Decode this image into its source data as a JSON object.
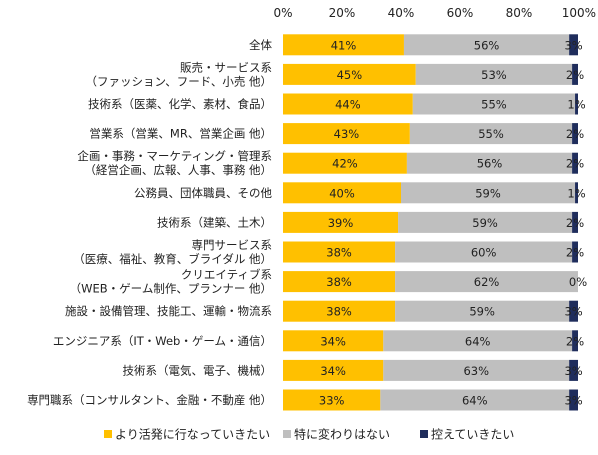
{
  "chart_data": {
    "type": "bar",
    "orientation": "horizontal",
    "stacked": true,
    "normalized": true,
    "xlim": [
      0,
      100
    ],
    "x_ticks": [
      "0%",
      "20%",
      "40%",
      "60%",
      "80%",
      "100%"
    ],
    "grid": false,
    "legend_position": "bottom",
    "categories": [
      [
        "全体"
      ],
      [
        "販売・サービス系",
        "（ファッション、フード、小売 他）"
      ],
      [
        "技術系（医薬、化学、素材、食品）"
      ],
      [
        "営業系（営業、MR、営業企画 他）"
      ],
      [
        "企画・事務・マーケティング・管理系",
        "（経営企画、広報、人事、事務 他）"
      ],
      [
        "公務員、団体職員、その他"
      ],
      [
        "技術系（建築、土木）"
      ],
      [
        "専門サービス系",
        "（医療、福祉、教育、ブライダル 他）"
      ],
      [
        "クリエイティブ系",
        "（WEB・ゲーム制作、プランナー 他）"
      ],
      [
        "施設・設備管理、技能工、運輸・物流系"
      ],
      [
        "エンジニア系（IT・Web・ゲーム・通信）"
      ],
      [
        "技術系（電気、電子、機械）"
      ],
      [
        "専門職系（コンサルタント、金融・不動産 他）"
      ]
    ],
    "series": [
      {
        "name": "より活発に行なっていきたい",
        "color": "#ffc000",
        "values": [
          41,
          45,
          44,
          43,
          42,
          40,
          39,
          38,
          38,
          38,
          34,
          34,
          33
        ],
        "labels": [
          "41%",
          "45%",
          "44%",
          "43%",
          "42%",
          "40%",
          "39%",
          "38%",
          "38%",
          "38%",
          "34%",
          "34%",
          "33%"
        ]
      },
      {
        "name": "特に変わりはない",
        "color": "#bfbfbf",
        "values": [
          56,
          53,
          55,
          55,
          56,
          59,
          59,
          60,
          62,
          59,
          64,
          63,
          64
        ],
        "labels": [
          "56%",
          "53%",
          "55%",
          "55%",
          "56%",
          "59%",
          "59%",
          "60%",
          "62%",
          "59%",
          "64%",
          "63%",
          "64%"
        ]
      },
      {
        "name": "控えていきたい",
        "color": "#1f2d5c",
        "values": [
          3,
          2,
          1,
          2,
          2,
          1,
          2,
          2,
          0,
          3,
          2,
          3,
          3
        ],
        "labels": [
          "3%",
          "2%",
          "1%",
          "2%",
          "2%",
          "1%",
          "2%",
          "2%",
          "0%",
          "3%",
          "2%",
          "3%",
          "3%"
        ]
      }
    ]
  }
}
